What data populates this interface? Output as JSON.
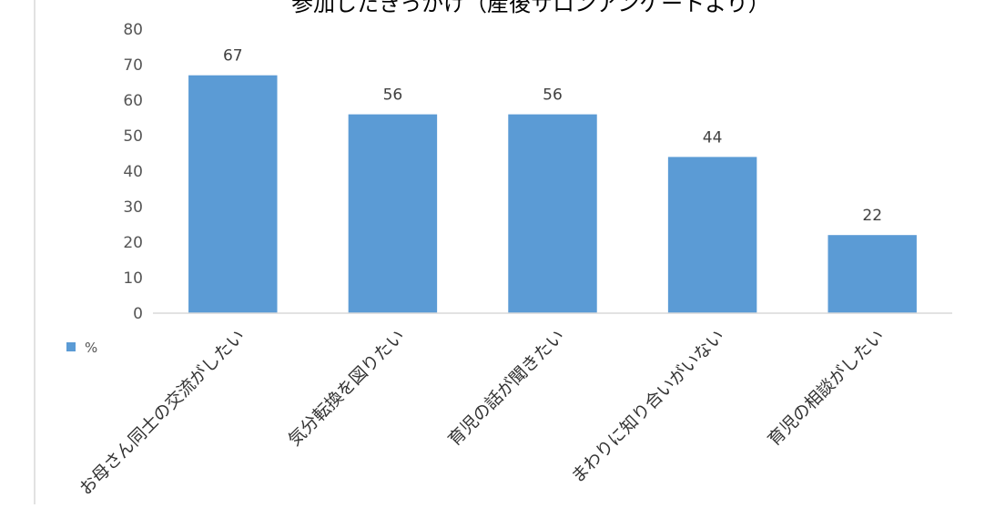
{
  "chart_data": {
    "type": "bar",
    "title": "参加したきっかけ（産後サロンアンケートより）",
    "categories": [
      "お母さん同士の交流がしたい",
      "気分転換を図りたい",
      "育児の話が聞きたい",
      "まわりに知り合いがいない",
      "育児の相談がしたい"
    ],
    "series": [
      {
        "name": "%",
        "values": [
          67,
          56,
          56,
          44,
          22
        ],
        "color": "#5b9bd5"
      }
    ],
    "data_labels": [
      "67",
      "56",
      "56",
      "44",
      "22"
    ],
    "yticks": [
      "0",
      "10",
      "20",
      "30",
      "40",
      "50",
      "60",
      "70",
      "80"
    ],
    "ylim": [
      0,
      80
    ],
    "xlabel": "",
    "ylabel": "",
    "grid": false,
    "legend": {
      "position": "left",
      "label": "%"
    },
    "colors": {
      "bar": "#5b9bd5",
      "axis": "#d9d9d9",
      "frame": "#d9d9d9"
    }
  }
}
